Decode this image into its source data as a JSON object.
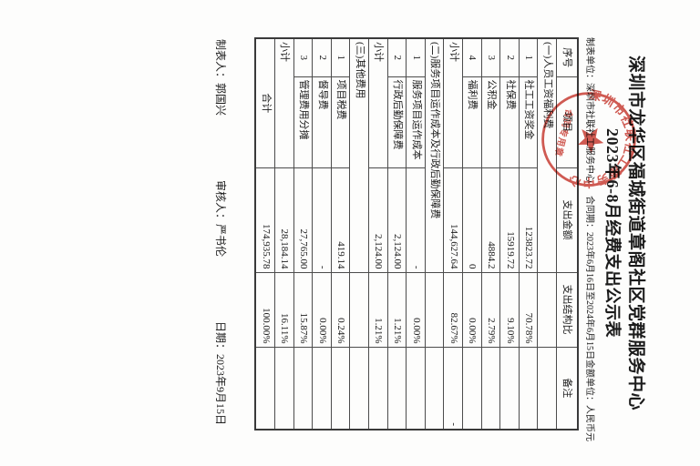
{
  "document": {
    "title_line1": "深圳市龙华区福城街道章阁社区党群服务中心",
    "title_line2": "2023年6-8月经费支出公示表",
    "meta": {
      "unit_label": "制表单位：深圳市社联社工服务中心",
      "contract_label": "合同期：2023年6月16日至2024年6月15日",
      "currency_label": "金额单位：人民币元"
    },
    "stamp": {
      "ring_text": "深圳市社联社工服务中心",
      "bottom_text": "合同专用章",
      "color": "#c5352b"
    },
    "table": {
      "columns": [
        "序号",
        "项目",
        "支出金额",
        "支出结构比",
        "备注"
      ],
      "rows": [
        {
          "type": "section",
          "label": "(一)人员工资福利费"
        },
        {
          "type": "item",
          "no": "1",
          "item": "社工工资奖金",
          "amount": "123823.72",
          "pct": "70.78%",
          "note": ""
        },
        {
          "type": "item",
          "no": "2",
          "item": "社保费",
          "amount": "15919.72",
          "pct": "9.10%",
          "note": ""
        },
        {
          "type": "item",
          "no": "3",
          "item": "公积金",
          "amount": "4884.2",
          "pct": "2.79%",
          "note": ""
        },
        {
          "type": "item",
          "no": "4",
          "item": "福利费",
          "amount": "0",
          "pct": "0.00%",
          "note": ""
        },
        {
          "type": "subtotal",
          "label": "小计",
          "amount": "144,627.64",
          "pct": "82.67%",
          "note": "-"
        },
        {
          "type": "section",
          "label": "(二)服务项目运作成本及行政后勤保障费"
        },
        {
          "type": "item",
          "no": "1",
          "item": "服务项目运作成本",
          "amount": "-",
          "pct": "0.00%",
          "note": ""
        },
        {
          "type": "item",
          "no": "2",
          "item": "行政后勤保障费",
          "amount": "2,124.00",
          "pct": "1.21%",
          "note": ""
        },
        {
          "type": "subtotal",
          "label": "小计",
          "amount": "2,124.00",
          "pct": "1.21%",
          "note": ""
        },
        {
          "type": "section",
          "label": "(三)其他费用"
        },
        {
          "type": "item",
          "no": "1",
          "item": "项目税费",
          "amount": "419.14",
          "pct": "0.24%",
          "note": ""
        },
        {
          "type": "item",
          "no": "2",
          "item": "督导费",
          "amount": "-",
          "pct": "0.00%",
          "note": ""
        },
        {
          "type": "item",
          "no": "3",
          "item": "管理费用分摊",
          "amount": "27,765.00",
          "pct": "15.87%",
          "note": ""
        },
        {
          "type": "subtotal",
          "label": "小计",
          "amount": "28,184.14",
          "pct": "16.11%",
          "note": ""
        },
        {
          "type": "total",
          "label": "合计",
          "amount": "174,935.78",
          "pct": "100.00%",
          "note": ""
        }
      ]
    },
    "footer": {
      "preparer": "制表人：郭国兴",
      "reviewer": "审核人：严书伦",
      "date": "日期：2023年9月15日"
    }
  }
}
